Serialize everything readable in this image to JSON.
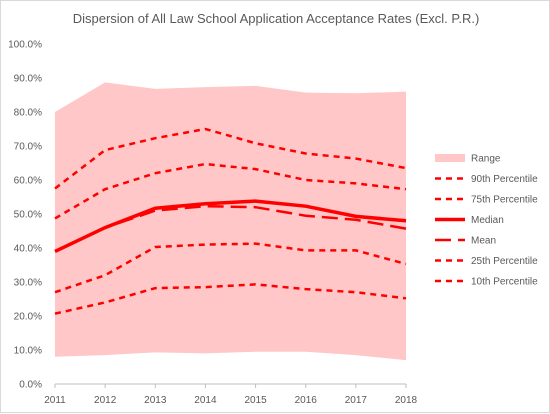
{
  "chart_data": {
    "type": "line",
    "title": "Dispersion of All Law School Application Acceptance Rates (Excl. P.R.)",
    "xlabel": "",
    "ylabel": "",
    "x": [
      "2011",
      "2012",
      "2013",
      "2014",
      "2015",
      "2016",
      "2017",
      "2018"
    ],
    "ylim": [
      0,
      100
    ],
    "yticks": [
      "0.0%",
      "10.0%",
      "20.0%",
      "30.0%",
      "40.0%",
      "50.0%",
      "60.0%",
      "70.0%",
      "80.0%",
      "90.0%",
      "100.0%"
    ],
    "grid": false,
    "legend_position": "right",
    "range": {
      "name": "Range",
      "color": "#ffc7c7",
      "low": [
        8.0,
        8.5,
        9.3,
        9.0,
        9.5,
        9.5,
        8.5,
        7.0
      ],
      "high": [
        80.0,
        88.7,
        86.8,
        87.3,
        87.7,
        85.7,
        85.5,
        86.0
      ]
    },
    "series": [
      {
        "name": "90th Percentile",
        "style": "short-dash",
        "color": "#ff0000",
        "values": [
          57.5,
          68.8,
          72.3,
          75.0,
          70.8,
          67.8,
          66.3,
          63.5
        ]
      },
      {
        "name": "75th Percentile",
        "style": "short-dash",
        "color": "#ff0000",
        "values": [
          48.7,
          57.3,
          62.0,
          64.7,
          63.2,
          60.0,
          59.0,
          57.3
        ]
      },
      {
        "name": "Median",
        "style": "solid",
        "color": "#ff0000",
        "values": [
          39.0,
          46.0,
          51.7,
          53.0,
          53.8,
          52.3,
          49.3,
          48.0
        ]
      },
      {
        "name": "Mean",
        "style": "long-dash",
        "color": "#ff0000",
        "values": [
          39.0,
          46.0,
          51.0,
          52.3,
          52.0,
          49.5,
          48.3,
          45.7
        ]
      },
      {
        "name": "25th Percentile",
        "style": "short-dash",
        "color": "#ff0000",
        "values": [
          27.0,
          32.0,
          40.3,
          41.0,
          41.3,
          39.3,
          39.3,
          35.3
        ]
      },
      {
        "name": "10th Percentile",
        "style": "short-dash",
        "color": "#ff0000",
        "values": [
          20.7,
          24.0,
          28.2,
          28.5,
          29.3,
          27.9,
          27.0,
          25.2
        ]
      }
    ]
  }
}
